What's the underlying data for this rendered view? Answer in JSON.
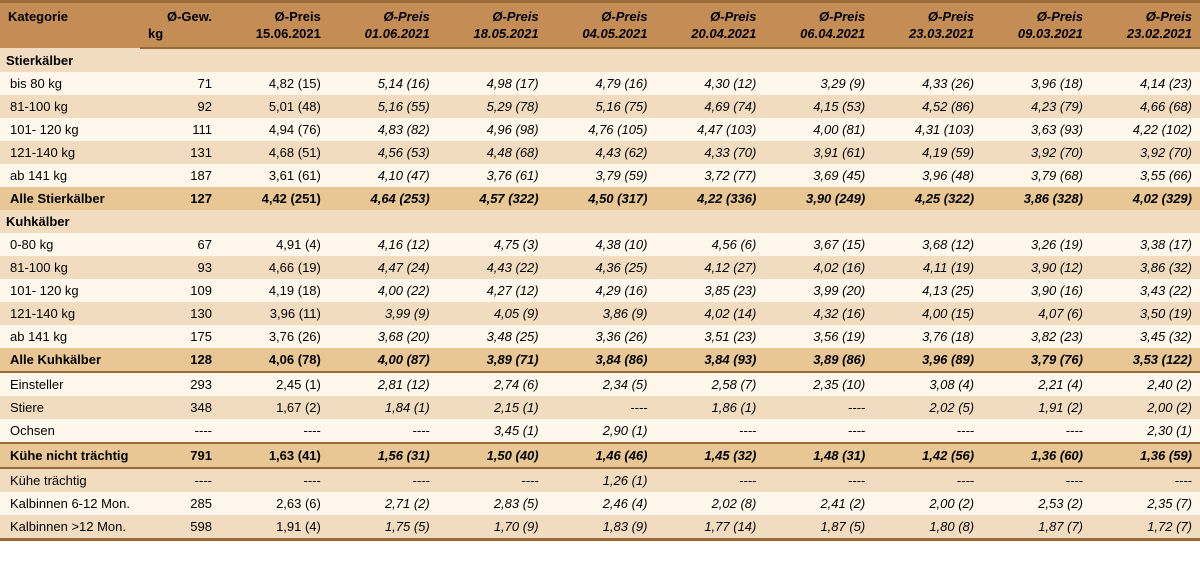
{
  "colors": {
    "header_bg": "#c48d55",
    "row_even": "#f2dcbf",
    "row_odd": "#fff7eb",
    "section_bg": "#f2dcbf",
    "total_bg": "#e8c794",
    "border": "#9c6a38"
  },
  "header": {
    "category": "Kategorie",
    "weight_top": "Ø-Gew.",
    "weight_sub": "kg",
    "price_prefix": "Ø-Preis",
    "dates": [
      "15.06.2021",
      "01.06.2021",
      "18.05.2021",
      "04.05.2021",
      "20.04.2021",
      "06.04.2021",
      "23.03.2021",
      "09.03.2021",
      "23.02.2021"
    ]
  },
  "sections": [
    {
      "title": "Stierkälber",
      "rows": [
        {
          "label": "bis 80 kg",
          "w": "71",
          "v": [
            "4,82 (15)",
            "5,14 (16)",
            "4,98 (17)",
            "4,79 (16)",
            "4,30 (12)",
            "3,29 (9)",
            "4,33 (26)",
            "3,96 (18)",
            "4,14 (23)"
          ]
        },
        {
          "label": "81-100 kg",
          "w": "92",
          "v": [
            "5,01 (48)",
            "5,16 (55)",
            "5,29 (78)",
            "5,16 (75)",
            "4,69 (74)",
            "4,15 (53)",
            "4,52 (86)",
            "4,23 (79)",
            "4,66 (68)"
          ]
        },
        {
          "label": "101- 120 kg",
          "w": "111",
          "v": [
            "4,94 (76)",
            "4,83 (82)",
            "4,96 (98)",
            "4,76 (105)",
            "4,47 (103)",
            "4,00 (81)",
            "4,31 (103)",
            "3,63 (93)",
            "4,22 (102)"
          ]
        },
        {
          "label": "121-140 kg",
          "w": "131",
          "v": [
            "4,68 (51)",
            "4,56 (53)",
            "4,48 (68)",
            "4,43 (62)",
            "4,33 (70)",
            "3,91 (61)",
            "4,19 (59)",
            "3,92 (70)",
            "3,92 (70)"
          ]
        },
        {
          "label": "ab 141 kg",
          "w": "187",
          "v": [
            "3,61 (61)",
            "4,10 (47)",
            "3,76 (61)",
            "3,79 (59)",
            "3,72 (77)",
            "3,69 (45)",
            "3,96 (48)",
            "3,79 (68)",
            "3,55 (66)"
          ]
        }
      ],
      "total": {
        "label": "Alle Stierkälber",
        "w": "127",
        "v": [
          "4,42 (251)",
          "4,64 (253)",
          "4,57 (322)",
          "4,50 (317)",
          "4,22 (336)",
          "3,90 (249)",
          "4,25 (322)",
          "3,86 (328)",
          "4,02 (329)"
        ]
      }
    },
    {
      "title": "Kuhkälber",
      "rows": [
        {
          "label": "0-80 kg",
          "w": "67",
          "v": [
            "4,91 (4)",
            "4,16 (12)",
            "4,75 (3)",
            "4,38 (10)",
            "4,56 (6)",
            "3,67 (15)",
            "3,68 (12)",
            "3,26 (19)",
            "3,38 (17)"
          ]
        },
        {
          "label": "81-100 kg",
          "w": "93",
          "v": [
            "4,66 (19)",
            "4,47 (24)",
            "4,43 (22)",
            "4,36 (25)",
            "4,12 (27)",
            "4,02 (16)",
            "4,11 (19)",
            "3,90 (12)",
            "3,86 (32)"
          ]
        },
        {
          "label": "101- 120 kg",
          "w": "109",
          "v": [
            "4,19 (18)",
            "4,00 (22)",
            "4,27 (12)",
            "4,29 (16)",
            "3,85 (23)",
            "3,99 (20)",
            "4,13 (25)",
            "3,90 (16)",
            "3,43 (22)"
          ]
        },
        {
          "label": "121-140 kg",
          "w": "130",
          "v": [
            "3,96 (11)",
            "3,99 (9)",
            "4,05 (9)",
            "3,86 (9)",
            "4,02 (14)",
            "4,32 (16)",
            "4,00 (15)",
            "4,07 (6)",
            "3,50 (19)"
          ]
        },
        {
          "label": "ab 141 kg",
          "w": "175",
          "v": [
            "3,76 (26)",
            "3,68 (20)",
            "3,48 (25)",
            "3,36 (26)",
            "3,51 (23)",
            "3,56 (19)",
            "3,76 (18)",
            "3,82 (23)",
            "3,45 (32)"
          ]
        }
      ],
      "total": {
        "label": "Alle Kuhkälber",
        "w": "128",
        "v": [
          "4,06 (78)",
          "4,00 (87)",
          "3,89 (71)",
          "3,84 (86)",
          "3,84 (93)",
          "3,89 (86)",
          "3,96 (89)",
          "3,79 (76)",
          "3,53 (122)"
        ]
      }
    }
  ],
  "misc_rows": [
    {
      "label": "Einsteller",
      "w": "293",
      "v": [
        "2,45 (1)",
        "2,81 (12)",
        "2,74 (6)",
        "2,34 (5)",
        "2,58 (7)",
        "2,35 (10)",
        "3,08 (4)",
        "2,21 (4)",
        "2,40 (2)"
      ],
      "sep": true
    },
    {
      "label": "Stiere",
      "w": "348",
      "v": [
        "1,67 (2)",
        "1,84 (1)",
        "2,15 (1)",
        "----",
        "1,86 (1)",
        "----",
        "2,02 (5)",
        "1,91 (2)",
        "2,00 (2)"
      ]
    },
    {
      "label": "Ochsen",
      "w": "----",
      "v": [
        "----",
        "----",
        "3,45 (1)",
        "2,90 (1)",
        "----",
        "----",
        "----",
        "----",
        "2,30 (1)"
      ]
    },
    {
      "label": "Kühe nicht trächtig",
      "w": "791",
      "v": [
        "1,63 (41)",
        "1,56 (31)",
        "1,50 (40)",
        "1,46 (46)",
        "1,45 (32)",
        "1,48 (31)",
        "1,42 (56)",
        "1,36 (60)",
        "1,36 (59)"
      ],
      "bold": true,
      "sep": true
    },
    {
      "label": "Kühe trächtig",
      "w": "----",
      "v": [
        "----",
        "----",
        "----",
        "1,26 (1)",
        "----",
        "----",
        "----",
        "----",
        "----"
      ],
      "sep": true
    },
    {
      "label": "Kalbinnen 6-12 Mon.",
      "w": "285",
      "v": [
        "2,63 (6)",
        "2,71 (2)",
        "2,83 (5)",
        "2,46 (4)",
        "2,02 (8)",
        "2,41 (2)",
        "2,00 (2)",
        "2,53 (2)",
        "2,35 (7)"
      ]
    },
    {
      "label": "Kalbinnen >12 Mon.",
      "w": "598",
      "v": [
        "1,91 (4)",
        "1,75 (5)",
        "1,70 (9)",
        "1,83 (9)",
        "1,77 (14)",
        "1,87 (5)",
        "1,80 (8)",
        "1,87 (7)",
        "1,72 (7)"
      ],
      "last": true
    }
  ]
}
